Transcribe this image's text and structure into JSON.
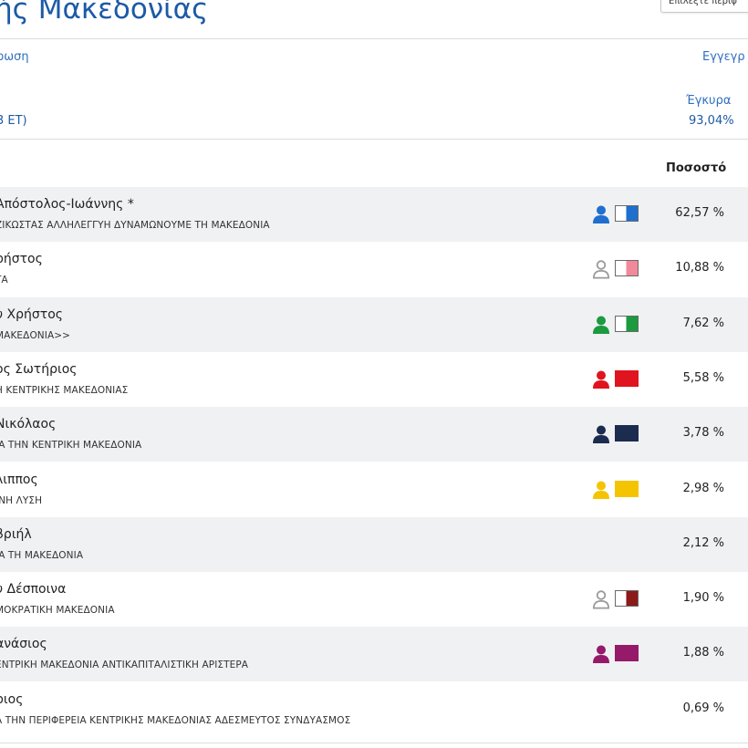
{
  "header": {
    "title": "ής Μακεδονίας",
    "region_select": "Επιλέξτε περιφ"
  },
  "summary": {
    "left_link": "ρωση",
    "left_note": "3 ΕΤ)",
    "right_link": "Εγγεγρ",
    "valid_label": "Έγκυρα",
    "valid_value": "93,04%"
  },
  "table": {
    "pct_header": "Ποσοστό",
    "rows": [
      {
        "name": "Απόστολος-Ιωάννης *",
        "party": "ΖΙΚΩΣΤΑΣ ΑΛΛΗΛΕΓΓΥΗ ΔΥΝΑΜΩΝΟΥΜΕ ΤΗ ΜΑΚΕΔΟΝΙΑ",
        "pct": "62,57 %",
        "icon": "person-icon",
        "person_color": "#1f6fce",
        "swatch_color": "#1f6fce",
        "half": true,
        "empty": false
      },
      {
        "name": "ρήστος",
        "party": "ΤΑ",
        "pct": "10,88 %",
        "icon": "person-outline-icon",
        "person_color": "#9a9a9a",
        "swatch_color": "#f08a9a",
        "half": true,
        "empty": false
      },
      {
        "name": "υ Χρήστος",
        "party": "ΜΑΚΕΔΟΝΙΑ>>",
        "pct": "7,62 %",
        "icon": "person-icon",
        "person_color": "#1b9a3f",
        "swatch_color": "#1b9a3f",
        "half": true,
        "empty": false
      },
      {
        "name": "ος Σωτήριος",
        "party": "Η ΚΕΝΤΡΙΚΗΣ ΜΑΚΕΔΟΝΙΑΣ",
        "pct": "5,58 %",
        "icon": "person-icon",
        "person_color": "#e0141e",
        "swatch_color": "#e0141e",
        "half": false,
        "empty": false
      },
      {
        "name": "Νικόλαος",
        "party": "ΙΑ ΤΗΝ ΚΕΝΤΡΙΚΗ ΜΑΚΕΔΟΝΙΑ",
        "pct": "3,78 %",
        "icon": "person-icon",
        "person_color": "#1c2c4f",
        "swatch_color": "#1c2c4f",
        "half": false,
        "empty": false
      },
      {
        "name": "λιππος",
        "party": "ΙΝΗ ΛΥΣΗ",
        "pct": "2,98 %",
        "icon": "person-icon",
        "person_color": "#f5c400",
        "swatch_color": "#f5c400",
        "half": false,
        "empty": false
      },
      {
        "name": "βριήλ",
        "party": "ΙΑ ΤΗ ΜΑΚΕΔΟΝΙΑ",
        "pct": "2,12 %",
        "icon": "",
        "person_color": "",
        "swatch_color": "",
        "half": false,
        "empty": true
      },
      {
        "name": "υ Δέσποινα",
        "party": "ΜΟΚΡΑΤΙΚΗ ΜΑΚΕΔΟΝΙΑ",
        "pct": "1,90 %",
        "icon": "person-outline-icon",
        "person_color": "#9a9a9a",
        "swatch_color": "#8b1a1a",
        "half": true,
        "empty": false
      },
      {
        "name": "ανάσιος",
        "party": "ΕΝΤΡΙΚΗ ΜΑΚΕΔΟΝΙΑ ΑΝΤΙΚΑΠΙΤΑΛΙΣΤΙΚΗ ΑΡΙΣΤΕΡΑ",
        "pct": "1,88 %",
        "icon": "person-icon",
        "person_color": "#961a6a",
        "swatch_color": "#961a6a",
        "half": false,
        "empty": false
      },
      {
        "name": "ριος",
        "party": "Α ΤΗΝ ΠΕΡΙΦΕΡΕΙΑ ΚΕΝΤΡΙΚΗΣ ΜΑΚΕΔΟΝΙΑΣ ΑΔΕΣΜΕΥΤΟΣ ΣΥΝΔΥΑΣΜΟΣ",
        "pct": "0,69 %",
        "icon": "",
        "person_color": "",
        "swatch_color": "",
        "half": false,
        "empty": true
      }
    ]
  }
}
